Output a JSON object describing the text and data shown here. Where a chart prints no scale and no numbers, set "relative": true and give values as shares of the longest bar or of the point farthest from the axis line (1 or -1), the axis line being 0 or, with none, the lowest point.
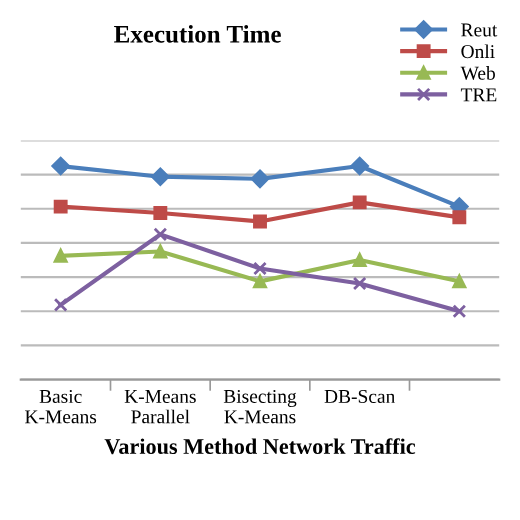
{
  "chart_data": {
    "type": "line",
    "title": "Execution Time",
    "xlabel": "Various Method Network Traffic",
    "relative": true,
    "categories": [
      "Basic K-Means",
      "K-Means Parallel",
      "Bisecting K-Means",
      "DB-Scan",
      null
    ],
    "series": [
      {
        "name": "Reut",
        "color": "#4a7ebb",
        "marker": "diamond",
        "values": [
          1,
          0.95,
          0.94,
          1,
          0.81
        ]
      },
      {
        "name": "Onli",
        "color": "#be4b48",
        "marker": "square",
        "values": [
          0.81,
          0.78,
          0.74,
          0.83,
          0.76
        ]
      },
      {
        "name": "Web",
        "color": "#98b954",
        "marker": "triangle",
        "values": [
          0.58,
          0.6,
          0.46,
          0.56,
          0.46
        ]
      },
      {
        "name": "TRE",
        "color": "#7d60a0",
        "marker": "cross",
        "values": [
          0.35,
          0.68,
          0.52,
          0.45,
          0.32
        ]
      }
    ],
    "grid": "y",
    "legend": "top right"
  }
}
